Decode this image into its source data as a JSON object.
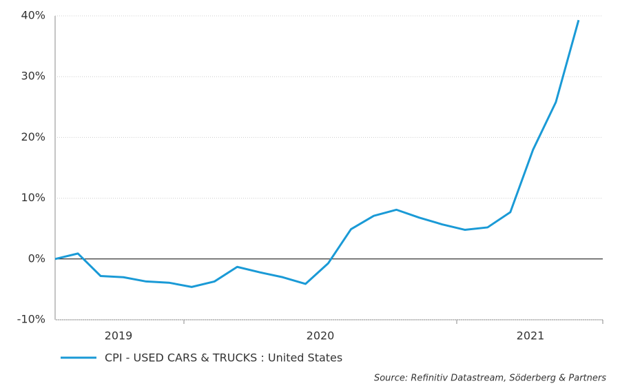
{
  "chart_data": {
    "type": "line",
    "categories": [
      null,
      null,
      null,
      null,
      null,
      null,
      null,
      null,
      null,
      null,
      null,
      null,
      null,
      null,
      null,
      null,
      null,
      null,
      null,
      null,
      null,
      null,
      null,
      null
    ],
    "year_labels": [
      "2019",
      "2020",
      "2021"
    ],
    "series": [
      {
        "name": "CPI - USED CARS & TRUCKS : United States",
        "color": "#1a9ad6",
        "values": [
          0,
          0.9,
          -2.8,
          -3.0,
          -3.7,
          -3.9,
          -4.6,
          -3.7,
          -1.3,
          -2.2,
          -3.0,
          -4.1,
          -0.7,
          4.9,
          7.1,
          8.1,
          6.8,
          5.7,
          4.8,
          5.2,
          7.7,
          18,
          25.8,
          39.3
        ]
      }
    ],
    "ylim": [
      -10,
      40
    ],
    "yticks": [
      {
        "value": -10,
        "label": "-10%"
      },
      {
        "value": 0,
        "label": "0%"
      },
      {
        "value": 10,
        "label": "10%"
      },
      {
        "value": 20,
        "label": "20%"
      },
      {
        "value": 30,
        "label": "30%"
      },
      {
        "value": 40,
        "label": "40%"
      }
    ],
    "grid": true,
    "source": "Source: Refinitiv Datastream, Söderberg & Partners"
  }
}
